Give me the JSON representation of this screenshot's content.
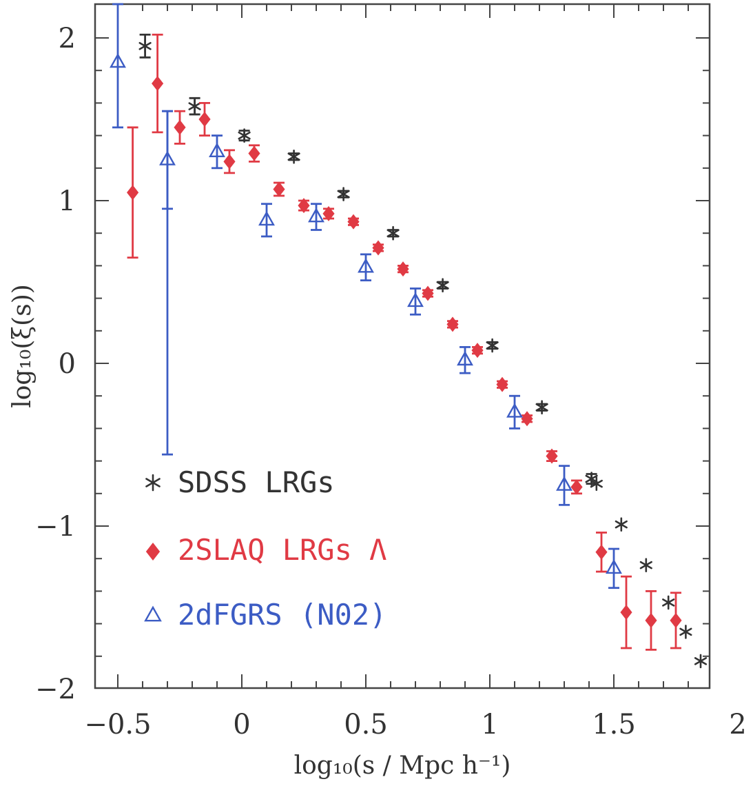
{
  "chart_data": {
    "type": "scatter",
    "xlabel": "log₁₀(s / Mpc h⁻¹)",
    "ylabel": "log₁₀(ξ(s))",
    "xlim": [
      -0.55,
      2.0
    ],
    "ylim": [
      -2.0,
      2.15
    ],
    "x_ticks": [
      {
        "value": -0.5,
        "label": "−0.5"
      },
      {
        "value": 0,
        "label": "0"
      },
      {
        "value": 0.5,
        "label": "0.5"
      },
      {
        "value": 1,
        "label": "1"
      },
      {
        "value": 1.5,
        "label": "1.5"
      },
      {
        "value": 2,
        "label": "2"
      }
    ],
    "y_ticks": [
      {
        "value": 2,
        "label": "2"
      },
      {
        "value": 1,
        "label": "1"
      },
      {
        "value": 0,
        "label": "0"
      },
      {
        "value": -1,
        "label": "−1"
      },
      {
        "value": -2,
        "label": "−2"
      }
    ],
    "grid": false,
    "legend_position": "bottom-left",
    "series": [
      {
        "name": "SDSS LRGs",
        "color": "#333333",
        "marker": "asterisk",
        "points": [
          {
            "x": -0.39,
            "y": 1.95,
            "err": 0.07
          },
          {
            "x": -0.19,
            "y": 1.58,
            "err": 0.05
          },
          {
            "x": 0.01,
            "y": 1.4,
            "err": 0.03
          },
          {
            "x": 0.21,
            "y": 1.27,
            "err": 0.02
          },
          {
            "x": 0.41,
            "y": 1.04,
            "err": 0.02
          },
          {
            "x": 0.61,
            "y": 0.8,
            "err": 0.02
          },
          {
            "x": 0.81,
            "y": 0.48,
            "err": 0.02
          },
          {
            "x": 1.01,
            "y": 0.11,
            "err": 0.02
          },
          {
            "x": 1.21,
            "y": -0.27,
            "err": 0.02
          },
          {
            "x": 1.41,
            "y": -0.71,
            "err": 0.03
          },
          {
            "x": 1.43,
            "y": -0.74,
            "err": 0.0
          },
          {
            "x": 1.53,
            "y": -0.99,
            "err": 0.0
          },
          {
            "x": 1.63,
            "y": -1.24,
            "err": 0.0
          },
          {
            "x": 1.72,
            "y": -1.47,
            "err": 0.0
          },
          {
            "x": 1.79,
            "y": -1.65,
            "err": 0.0
          },
          {
            "x": 1.85,
            "y": -1.83,
            "err": 0.0
          }
        ]
      },
      {
        "name": "2SLAQ LRGs Λ",
        "color": "#e03a44",
        "marker": "diamond",
        "points": [
          {
            "x": -0.44,
            "y": 1.05,
            "err": 0.4
          },
          {
            "x": -0.34,
            "y": 1.72,
            "err": 0.3
          },
          {
            "x": -0.25,
            "y": 1.45,
            "err": 0.1
          },
          {
            "x": -0.15,
            "y": 1.5,
            "err": 0.1
          },
          {
            "x": -0.05,
            "y": 1.24,
            "err": 0.07
          },
          {
            "x": 0.05,
            "y": 1.29,
            "err": 0.05
          },
          {
            "x": 0.15,
            "y": 1.07,
            "err": 0.04
          },
          {
            "x": 0.25,
            "y": 0.97,
            "err": 0.03
          },
          {
            "x": 0.35,
            "y": 0.92,
            "err": 0.03
          },
          {
            "x": 0.45,
            "y": 0.87,
            "err": 0.02
          },
          {
            "x": 0.55,
            "y": 0.71,
            "err": 0.02
          },
          {
            "x": 0.65,
            "y": 0.58,
            "err": 0.02
          },
          {
            "x": 0.75,
            "y": 0.43,
            "err": 0.02
          },
          {
            "x": 0.85,
            "y": 0.24,
            "err": 0.02
          },
          {
            "x": 0.95,
            "y": 0.08,
            "err": 0.02
          },
          {
            "x": 1.05,
            "y": -0.13,
            "err": 0.02
          },
          {
            "x": 1.15,
            "y": -0.34,
            "err": 0.02
          },
          {
            "x": 1.25,
            "y": -0.57,
            "err": 0.03
          },
          {
            "x": 1.35,
            "y": -0.76,
            "err": 0.04
          },
          {
            "x": 1.45,
            "y": -1.16,
            "err": 0.12
          },
          {
            "x": 1.55,
            "y": -1.53,
            "err": 0.22
          },
          {
            "x": 1.65,
            "y": -1.58,
            "err": 0.18
          },
          {
            "x": 1.75,
            "y": -1.58,
            "err": 0.17
          }
        ]
      },
      {
        "name": "2dFGRS (N02)",
        "color": "#3c5cc4",
        "marker": "triangle",
        "points": [
          {
            "x": -0.5,
            "y": 1.85,
            "err": 0.4
          },
          {
            "x": -0.3,
            "y": 1.25,
            "err": 0.3
          },
          {
            "x": -0.1,
            "y": 1.3,
            "err": 0.1
          },
          {
            "x": 0.1,
            "y": 0.88,
            "err": 0.1
          },
          {
            "x": 0.3,
            "y": 0.9,
            "err": 0.08
          },
          {
            "x": 0.5,
            "y": 0.59,
            "err": 0.08
          },
          {
            "x": 0.7,
            "y": 0.38,
            "err": 0.08
          },
          {
            "x": 0.9,
            "y": 0.02,
            "err": 0.08
          },
          {
            "x": 1.1,
            "y": -0.3,
            "err": 0.1
          },
          {
            "x": 1.3,
            "y": -0.75,
            "err": 0.12
          },
          {
            "x": 1.5,
            "y": -1.26,
            "err": 0.12
          }
        ],
        "overflow_errorbars": [
          {
            "x": -0.3,
            "upper": 1.55,
            "lower": -0.56
          }
        ]
      }
    ]
  }
}
